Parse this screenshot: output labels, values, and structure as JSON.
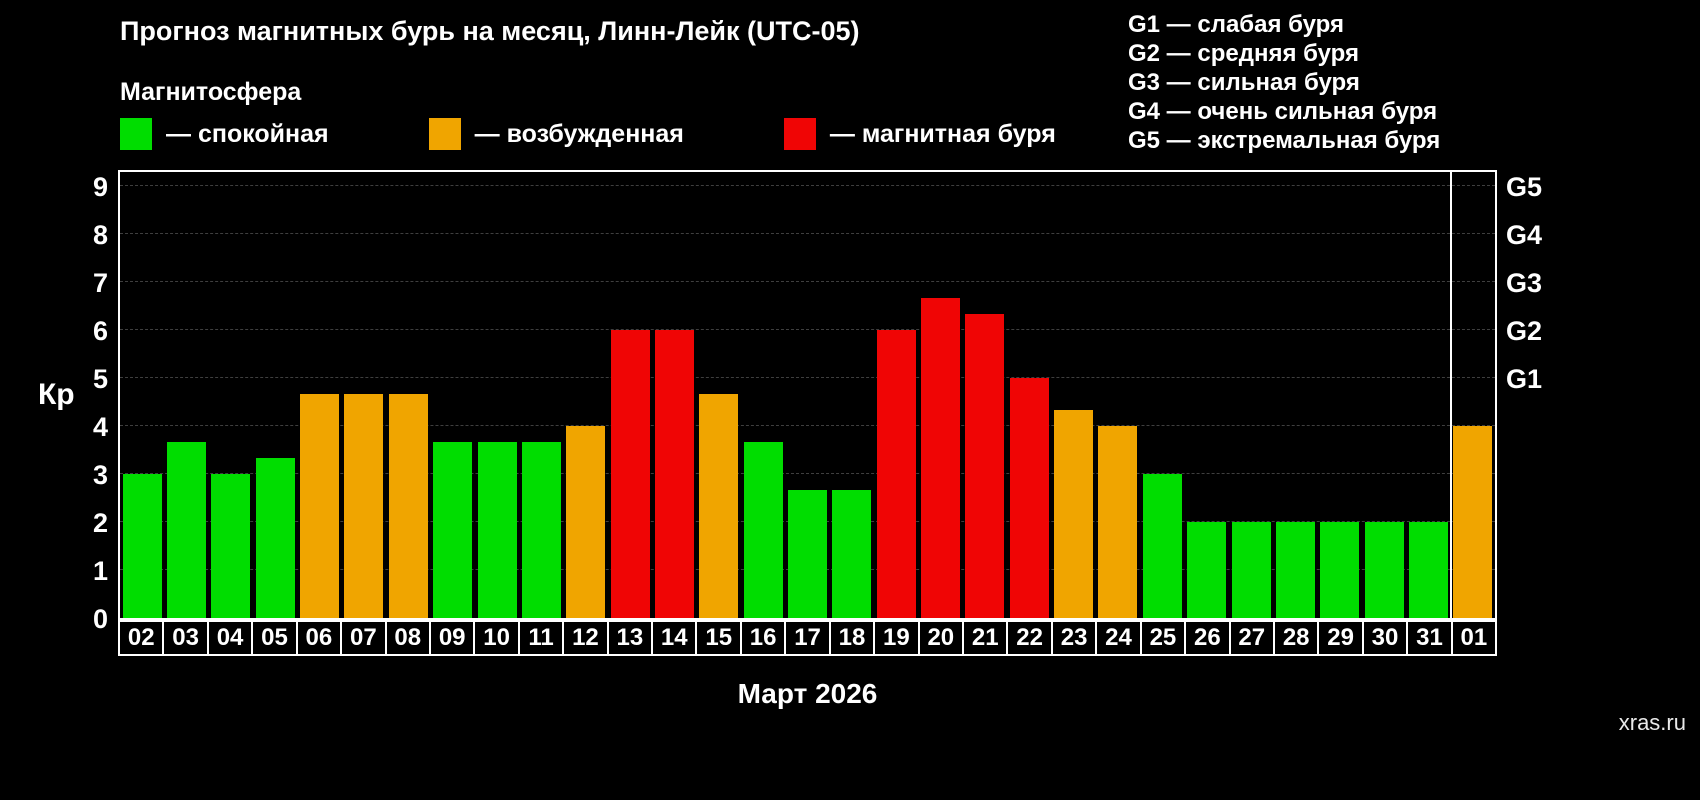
{
  "title": "Прогноз магнитных бурь на месяц, Линн-Лейк (UTC-05)",
  "legend": {
    "heading": "Магнитосфера",
    "items": [
      {
        "label": "— спокойная",
        "color": "#00dd00",
        "level": "quiet"
      },
      {
        "label": "— возбужденная",
        "color": "#f0a500",
        "level": "excited"
      },
      {
        "label": "— магнитная буря",
        "color": "#f00505",
        "level": "storm"
      }
    ]
  },
  "g_legend": [
    "G1 — слабая буря",
    "G2 — средняя буря",
    "G3 — сильная буря",
    "G4 — очень сильная буря",
    "G5 — экстремальная буря"
  ],
  "chart_data": {
    "type": "bar",
    "title": "Прогноз магнитных бурь на месяц, Линн-Лейк (UTC-05)",
    "xlabel": "Март 2026",
    "ylabel": "Кр",
    "ylim": [
      0,
      9.3
    ],
    "yticks": [
      0,
      1,
      2,
      3,
      4,
      5,
      6,
      7,
      8,
      9
    ],
    "right_ticks": [
      {
        "label": "G1",
        "kp": 5
      },
      {
        "label": "G2",
        "kp": 6
      },
      {
        "label": "G3",
        "kp": 7
      },
      {
        "label": "G4",
        "kp": 8
      },
      {
        "label": "G5",
        "kp": 9
      }
    ],
    "colors": {
      "quiet": "#00dd00",
      "excited": "#f0a500",
      "storm": "#f00505"
    },
    "grid": "dashed horizontal",
    "legend_position": "top",
    "month_separator_before_index": 30,
    "bars": [
      {
        "day": "02",
        "kp": 3.0,
        "level": "quiet"
      },
      {
        "day": "03",
        "kp": 3.67,
        "level": "quiet"
      },
      {
        "day": "04",
        "kp": 3.0,
        "level": "quiet"
      },
      {
        "day": "05",
        "kp": 3.33,
        "level": "quiet"
      },
      {
        "day": "06",
        "kp": 4.67,
        "level": "excited"
      },
      {
        "day": "07",
        "kp": 4.67,
        "level": "excited"
      },
      {
        "day": "08",
        "kp": 4.67,
        "level": "excited"
      },
      {
        "day": "09",
        "kp": 3.67,
        "level": "quiet"
      },
      {
        "day": "10",
        "kp": 3.67,
        "level": "quiet"
      },
      {
        "day": "11",
        "kp": 3.67,
        "level": "quiet"
      },
      {
        "day": "12",
        "kp": 4.0,
        "level": "excited"
      },
      {
        "day": "13",
        "kp": 6.0,
        "level": "storm"
      },
      {
        "day": "14",
        "kp": 6.0,
        "level": "storm"
      },
      {
        "day": "15",
        "kp": 4.67,
        "level": "excited"
      },
      {
        "day": "16",
        "kp": 3.67,
        "level": "quiet"
      },
      {
        "day": "17",
        "kp": 2.67,
        "level": "quiet"
      },
      {
        "day": "18",
        "kp": 2.67,
        "level": "quiet"
      },
      {
        "day": "19",
        "kp": 6.0,
        "level": "storm"
      },
      {
        "day": "20",
        "kp": 6.67,
        "level": "storm"
      },
      {
        "day": "21",
        "kp": 6.33,
        "level": "storm"
      },
      {
        "day": "22",
        "kp": 5.0,
        "level": "storm"
      },
      {
        "day": "23",
        "kp": 4.33,
        "level": "excited"
      },
      {
        "day": "24",
        "kp": 4.0,
        "level": "excited"
      },
      {
        "day": "25",
        "kp": 3.0,
        "level": "quiet"
      },
      {
        "day": "26",
        "kp": 2.0,
        "level": "quiet"
      },
      {
        "day": "27",
        "kp": 2.0,
        "level": "quiet"
      },
      {
        "day": "28",
        "kp": 2.0,
        "level": "quiet"
      },
      {
        "day": "29",
        "kp": 2.0,
        "level": "quiet"
      },
      {
        "day": "30",
        "kp": 2.0,
        "level": "quiet"
      },
      {
        "day": "31",
        "kp": 2.0,
        "level": "quiet"
      },
      {
        "day": "01",
        "kp": 4.0,
        "level": "excited"
      }
    ]
  },
  "watermark": "xras.ru"
}
